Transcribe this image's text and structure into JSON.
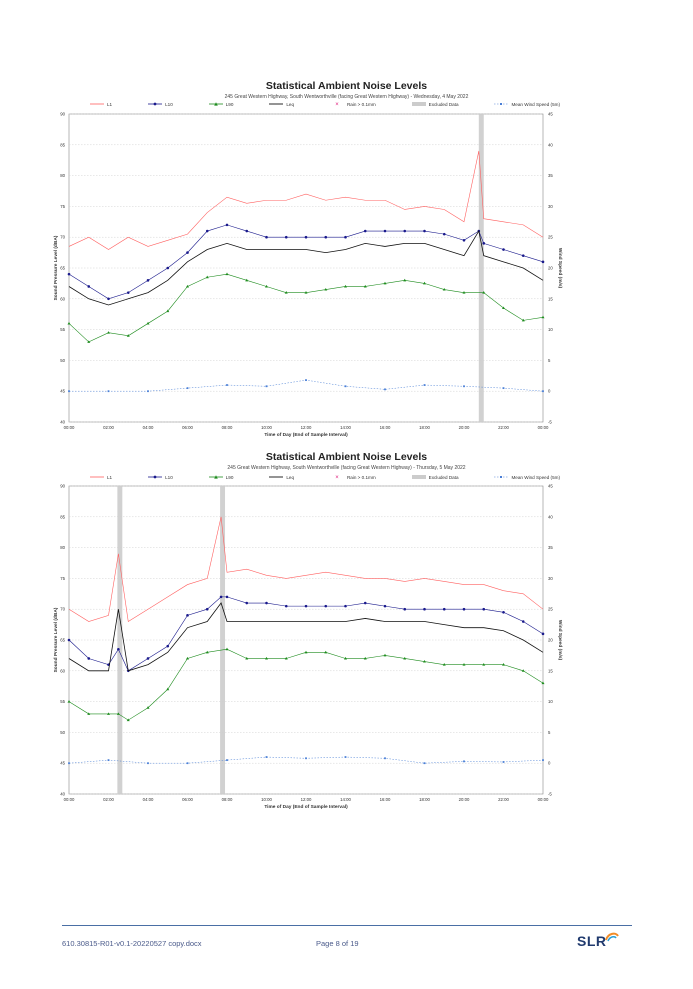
{
  "footer": {
    "document": "610.30815-R01-v0.1-20220527 copy.docx",
    "page": "Page 8 of 19",
    "logo": "SLR"
  },
  "legend_labels": {
    "l1": "L1",
    "l10": "L10",
    "l90": "L90",
    "leq": "Leq",
    "rain": "Rain > 0.1mm",
    "excluded": "Excluded Data",
    "wind": "Mean Wind Speed (5m)"
  },
  "colors": {
    "l1": "#ff6060",
    "l10": "#1a1a8c",
    "l90": "#1e8c1e",
    "leq": "#111111",
    "rain": "#e0207e",
    "excluded": "#cccccc",
    "wind": "#4a7fd6"
  },
  "chart_data": [
    {
      "type": "line",
      "title": "Statistical Ambient Noise Levels",
      "subtitle": "245 Great Western Highway, South Wentworthville (facing Great Western Highway) - Wednesday, 4 May 2022",
      "xlabel": "Time of Day (End of Sample Interval)",
      "ylabel": "Sound Pressure Level (dBA)",
      "y2label": "Wind Speed (m/s)",
      "x_ticks": [
        "00:00",
        "02:00",
        "04:00",
        "06:00",
        "08:00",
        "10:00",
        "12:00",
        "14:00",
        "16:00",
        "18:00",
        "20:00",
        "22:00",
        "00:00"
      ],
      "ylim": [
        40,
        90
      ],
      "y_ticks": [
        40,
        45,
        50,
        55,
        60,
        65,
        70,
        75,
        80,
        85,
        90
      ],
      "y2lim": [
        -5,
        45
      ],
      "y2_ticks": [
        -5,
        0,
        5,
        10,
        15,
        20,
        25,
        30,
        35,
        40,
        45
      ],
      "excluded_hours": [
        [
          20.75,
          21.0
        ]
      ],
      "series": [
        {
          "name": "L1",
          "key": "l1",
          "hours": [
            0,
            1,
            2,
            3,
            4,
            5,
            6,
            7,
            8,
            9,
            10,
            11,
            12,
            13,
            14,
            15,
            16,
            17,
            18,
            19,
            20,
            20.75,
            21,
            22,
            23,
            24
          ],
          "values": [
            68.5,
            70,
            68,
            70,
            68.5,
            69.5,
            70.5,
            74,
            76.5,
            75.5,
            76,
            76,
            77,
            76,
            76.5,
            76,
            76,
            74.5,
            75,
            74.5,
            72.5,
            84,
            73,
            72.5,
            72,
            70
          ]
        },
        {
          "name": "L10",
          "key": "l10",
          "hours": [
            0,
            1,
            2,
            3,
            4,
            5,
            6,
            7,
            8,
            9,
            10,
            11,
            12,
            13,
            14,
            15,
            16,
            17,
            18,
            19,
            20,
            20.75,
            21,
            22,
            23,
            24
          ],
          "values": [
            64,
            62,
            60,
            61,
            63,
            65,
            67.5,
            71,
            72,
            71,
            70,
            70,
            70,
            70,
            70,
            71,
            71,
            71,
            71,
            70.5,
            69.5,
            71,
            69,
            68,
            67,
            66
          ]
        },
        {
          "name": "Leq",
          "key": "leq",
          "hours": [
            0,
            1,
            2,
            3,
            4,
            5,
            6,
            7,
            8,
            9,
            10,
            11,
            12,
            13,
            14,
            15,
            16,
            17,
            18,
            19,
            20,
            20.75,
            21,
            22,
            23,
            24
          ],
          "values": [
            62,
            60,
            59,
            60,
            61,
            63,
            66,
            68,
            69,
            68,
            68,
            68,
            68,
            67.5,
            68,
            69,
            68.5,
            69,
            69,
            68,
            67,
            71,
            67,
            66,
            65,
            63
          ]
        },
        {
          "name": "L90",
          "key": "l90",
          "hours": [
            0,
            1,
            2,
            3,
            4,
            5,
            6,
            7,
            8,
            9,
            10,
            11,
            12,
            13,
            14,
            15,
            16,
            17,
            18,
            19,
            20,
            21,
            22,
            23,
            24
          ],
          "values": [
            56,
            53,
            54.5,
            54,
            56,
            58,
            62,
            63.5,
            64,
            63,
            62,
            61,
            61,
            61.5,
            62,
            62,
            62.5,
            63,
            62.5,
            61.5,
            61,
            61,
            58.5,
            56.5,
            57
          ]
        }
      ],
      "wind": {
        "name": "Mean Wind Speed (5m)",
        "hours": [
          0,
          2,
          4,
          6,
          8,
          10,
          12,
          14,
          16,
          18,
          20,
          22,
          24
        ],
        "values": [
          0,
          0,
          0,
          0.5,
          1,
          0.8,
          1.8,
          0.8,
          0.3,
          1,
          0.8,
          0.5,
          0
        ]
      }
    },
    {
      "type": "line",
      "title": "Statistical Ambient Noise Levels",
      "subtitle": "245 Great Western Highway, South Wentworthville (facing Great Western Highway) - Thursday, 5 May 2022",
      "xlabel": "Time of Day (End of Sample Interval)",
      "ylabel": "Sound Pressure Level (dBA)",
      "y2label": "Wind Speed (m/s)",
      "x_ticks": [
        "00:00",
        "02:00",
        "04:00",
        "06:00",
        "08:00",
        "10:00",
        "12:00",
        "14:00",
        "16:00",
        "18:00",
        "20:00",
        "22:00",
        "00:00"
      ],
      "ylim": [
        40,
        90
      ],
      "y_ticks": [
        40,
        45,
        50,
        55,
        60,
        65,
        70,
        75,
        80,
        85,
        90
      ],
      "y2lim": [
        -5,
        45
      ],
      "y2_ticks": [
        -5,
        0,
        5,
        10,
        15,
        20,
        25,
        30,
        35,
        40,
        45
      ],
      "excluded_hours": [
        [
          2.45,
          2.7
        ],
        [
          7.65,
          7.9
        ]
      ],
      "series": [
        {
          "name": "L1",
          "key": "l1",
          "hours": [
            0,
            1,
            2,
            2.5,
            3,
            4,
            5,
            6,
            7,
            7.7,
            8,
            9,
            10,
            11,
            12,
            13,
            14,
            15,
            16,
            17,
            18,
            19,
            20,
            21,
            22,
            23,
            24
          ],
          "values": [
            70,
            68,
            69,
            79,
            68,
            70,
            72,
            74,
            75,
            85,
            76,
            76.5,
            75.5,
            75,
            75.5,
            76,
            75.5,
            75,
            75,
            74.5,
            75,
            74.5,
            74,
            74,
            73,
            72.5,
            70
          ]
        },
        {
          "name": "L10",
          "key": "l10",
          "hours": [
            0,
            1,
            2,
            2.5,
            3,
            4,
            5,
            6,
            7,
            7.7,
            8,
            9,
            10,
            11,
            12,
            13,
            14,
            15,
            16,
            17,
            18,
            19,
            20,
            21,
            22,
            23,
            24
          ],
          "values": [
            65,
            62,
            61,
            63.5,
            60,
            62,
            64,
            69,
            70,
            72,
            72,
            71,
            71,
            70.5,
            70.5,
            70.5,
            70.5,
            71,
            70.5,
            70,
            70,
            70,
            70,
            70,
            69.5,
            68,
            66
          ]
        },
        {
          "name": "Leq",
          "key": "leq",
          "hours": [
            0,
            1,
            2,
            2.5,
            3,
            4,
            5,
            6,
            7,
            7.7,
            8,
            9,
            10,
            11,
            12,
            13,
            14,
            15,
            16,
            17,
            18,
            19,
            20,
            21,
            22,
            23,
            24
          ],
          "values": [
            62,
            60,
            60,
            70,
            60,
            61,
            63,
            67,
            68,
            71,
            68,
            68,
            68,
            68,
            68,
            68,
            68,
            68.5,
            68,
            68,
            68,
            67.5,
            67,
            67,
            66.5,
            65,
            63
          ]
        },
        {
          "name": "L90",
          "key": "l90",
          "hours": [
            0,
            1,
            2,
            2.5,
            3,
            4,
            5,
            6,
            7,
            8,
            9,
            10,
            11,
            12,
            13,
            14,
            15,
            16,
            17,
            18,
            19,
            20,
            21,
            22,
            23,
            24
          ],
          "values": [
            55,
            53,
            53,
            53,
            52,
            54,
            57,
            62,
            63,
            63.5,
            62,
            62,
            62,
            63,
            63,
            62,
            62,
            62.5,
            62,
            61.5,
            61,
            61,
            61,
            61,
            60,
            58
          ]
        }
      ],
      "wind": {
        "name": "Mean Wind Speed (5m)",
        "hours": [
          0,
          2,
          4,
          6,
          8,
          10,
          12,
          14,
          16,
          18,
          20,
          22,
          24
        ],
        "values": [
          0,
          0.5,
          0,
          0,
          0.5,
          1,
          0.8,
          1,
          0.8,
          0,
          0.3,
          0.2,
          0.5
        ]
      }
    }
  ]
}
